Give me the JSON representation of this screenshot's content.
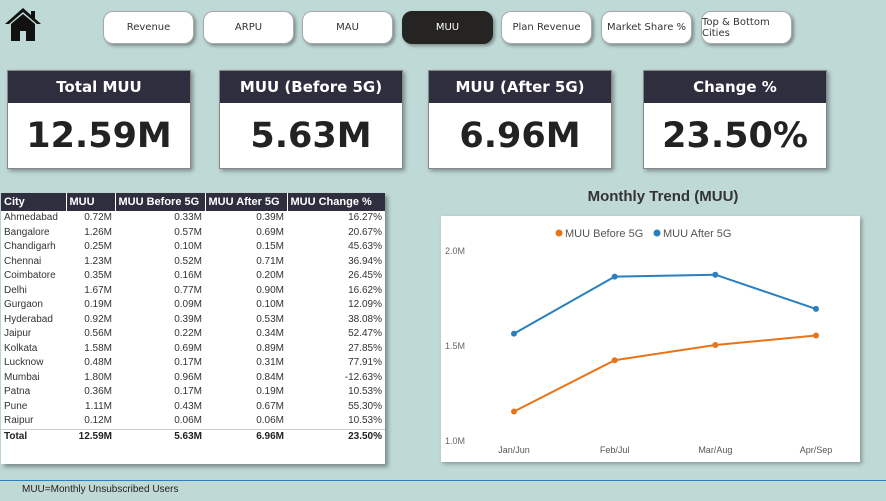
{
  "nav": {
    "buttons": [
      {
        "label": "Revenue"
      },
      {
        "label": "ARPU"
      },
      {
        "label": "MAU"
      },
      {
        "label": "MUU",
        "active": true
      },
      {
        "label": "Plan Revenue"
      },
      {
        "label": "Market Share %"
      },
      {
        "label": "Top & Bottom Cities"
      }
    ]
  },
  "icons": {
    "home": "home-icon"
  },
  "cards": [
    {
      "title": "Total MUU",
      "value": "12.59M"
    },
    {
      "title": "MUU (Before 5G)",
      "value": "5.63M"
    },
    {
      "title": "MUU (After 5G)",
      "value": "6.96M"
    },
    {
      "title": "Change %",
      "value": "23.50%"
    }
  ],
  "table": {
    "headers": [
      "City",
      "MUU",
      "MUU Before 5G",
      "MUU After 5G",
      "MUU Change %"
    ],
    "rows": [
      [
        "Ahmedabad",
        "0.72M",
        "0.33M",
        "0.39M",
        "16.27%"
      ],
      [
        "Bangalore",
        "1.26M",
        "0.57M",
        "0.69M",
        "20.67%"
      ],
      [
        "Chandigarh",
        "0.25M",
        "0.10M",
        "0.15M",
        "45.63%"
      ],
      [
        "Chennai",
        "1.23M",
        "0.52M",
        "0.71M",
        "36.94%"
      ],
      [
        "Coimbatore",
        "0.35M",
        "0.16M",
        "0.20M",
        "26.45%"
      ],
      [
        "Delhi",
        "1.67M",
        "0.77M",
        "0.90M",
        "16.62%"
      ],
      [
        "Gurgaon",
        "0.19M",
        "0.09M",
        "0.10M",
        "12.09%"
      ],
      [
        "Hyderabad",
        "0.92M",
        "0.39M",
        "0.53M",
        "38.08%"
      ],
      [
        "Jaipur",
        "0.56M",
        "0.22M",
        "0.34M",
        "52.47%"
      ],
      [
        "Kolkata",
        "1.58M",
        "0.69M",
        "0.89M",
        "27.85%"
      ],
      [
        "Lucknow",
        "0.48M",
        "0.17M",
        "0.31M",
        "77.91%"
      ],
      [
        "Mumbai",
        "1.80M",
        "0.96M",
        "0.84M",
        "-12.63%"
      ],
      [
        "Patna",
        "0.36M",
        "0.17M",
        "0.19M",
        "10.53%"
      ],
      [
        "Pune",
        "1.11M",
        "0.43M",
        "0.67M",
        "55.30%"
      ],
      [
        "Raipur",
        "0.12M",
        "0.06M",
        "0.06M",
        "10.53%"
      ]
    ],
    "total": [
      "Total",
      "12.59M",
      "5.63M",
      "6.96M",
      "23.50%"
    ]
  },
  "chart_data": {
    "type": "line",
    "title": "Monthly Trend (MUU)",
    "categories": [
      "Jan/Jun",
      "Feb/Jul",
      "Mar/Aug",
      "Apr/Sep"
    ],
    "series": [
      {
        "name": "MUU Before 5G",
        "color": "#e8741a",
        "values": [
          1.15,
          1.42,
          1.5,
          1.55
        ]
      },
      {
        "name": "MUU After 5G",
        "color": "#2a7fbf",
        "values": [
          1.56,
          1.86,
          1.87,
          1.69
        ]
      }
    ],
    "yticks": [
      "2.0M",
      "1.5M",
      "1.0M"
    ],
    "ylim": [
      1.0,
      2.0
    ],
    "legend_position": "top-center"
  },
  "footnote": "MUU=Monthly Unsubscribed Users"
}
